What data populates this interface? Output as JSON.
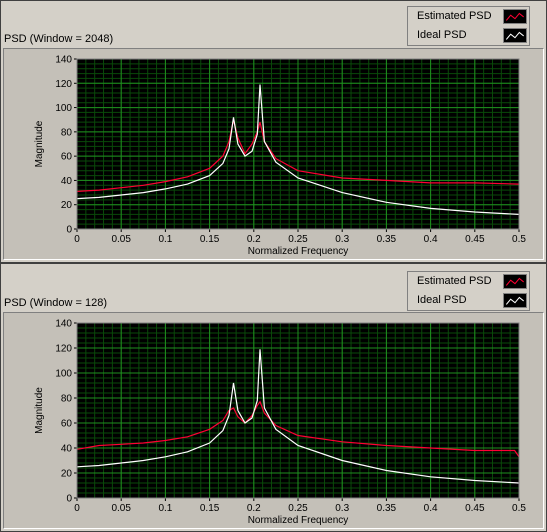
{
  "chart_data": [
    {
      "type": "line",
      "title": "PSD (Window = 2048)",
      "xlabel": "Normalized Frequency",
      "ylabel": "Magnitude",
      "xlim": [
        0,
        0.5
      ],
      "ylim": [
        0,
        140
      ],
      "x_ticks": [
        "0",
        "0.05",
        "0.1",
        "0.15",
        "0.2",
        "0.25",
        "0.3",
        "0.35",
        "0.4",
        "0.45",
        "0.5"
      ],
      "y_ticks": [
        "0",
        "20",
        "40",
        "60",
        "80",
        "100",
        "120",
        "140"
      ],
      "grid": true,
      "legend_position": "top-right",
      "series": [
        {
          "name": "Estimated PSD",
          "color": "#ff0033",
          "x": [
            0,
            0.025,
            0.05,
            0.075,
            0.1,
            0.125,
            0.15,
            0.165,
            0.172,
            0.177,
            0.182,
            0.19,
            0.198,
            0.204,
            0.207,
            0.212,
            0.225,
            0.25,
            0.3,
            0.35,
            0.4,
            0.45,
            0.5
          ],
          "y": [
            31,
            32,
            34,
            36,
            39,
            43,
            50,
            60,
            72,
            90,
            75,
            62,
            70,
            80,
            88,
            72,
            58,
            48,
            42,
            40,
            38,
            38,
            37
          ]
        },
        {
          "name": "Ideal PSD",
          "color": "#ffffff",
          "x": [
            0,
            0.025,
            0.05,
            0.075,
            0.1,
            0.125,
            0.15,
            0.165,
            0.172,
            0.177,
            0.182,
            0.19,
            0.198,
            0.204,
            0.207,
            0.212,
            0.225,
            0.25,
            0.3,
            0.35,
            0.4,
            0.45,
            0.5
          ],
          "y": [
            25,
            26,
            28,
            30,
            33,
            37,
            44,
            54,
            66,
            92,
            70,
            60,
            64,
            78,
            119,
            72,
            55,
            42,
            30,
            22,
            17,
            14,
            12
          ]
        }
      ]
    },
    {
      "type": "line",
      "title": "PSD (Window = 128)",
      "xlabel": "Normalized Frequency",
      "ylabel": "Magnitude",
      "xlim": [
        0,
        0.5
      ],
      "ylim": [
        0,
        140
      ],
      "x_ticks": [
        "0",
        "0.05",
        "0.1",
        "0.15",
        "0.2",
        "0.25",
        "0.3",
        "0.35",
        "0.4",
        "0.45",
        "0.5"
      ],
      "y_ticks": [
        "0",
        "20",
        "40",
        "60",
        "80",
        "100",
        "120",
        "140"
      ],
      "grid": true,
      "legend_position": "top-right",
      "series": [
        {
          "name": "Estimated PSD",
          "color": "#ff0033",
          "x": [
            0,
            0.025,
            0.05,
            0.075,
            0.1,
            0.125,
            0.15,
            0.165,
            0.172,
            0.177,
            0.182,
            0.19,
            0.198,
            0.204,
            0.207,
            0.212,
            0.225,
            0.25,
            0.3,
            0.35,
            0.4,
            0.45,
            0.495,
            0.5
          ],
          "y": [
            39,
            42,
            43,
            44,
            46,
            49,
            55,
            62,
            70,
            72,
            65,
            60,
            66,
            74,
            77,
            68,
            58,
            50,
            45,
            42,
            40,
            38,
            38,
            33
          ]
        },
        {
          "name": "Ideal PSD",
          "color": "#ffffff",
          "x": [
            0,
            0.025,
            0.05,
            0.075,
            0.1,
            0.125,
            0.15,
            0.165,
            0.172,
            0.177,
            0.182,
            0.19,
            0.198,
            0.204,
            0.207,
            0.212,
            0.225,
            0.25,
            0.3,
            0.35,
            0.4,
            0.45,
            0.5
          ],
          "y": [
            25,
            26,
            28,
            30,
            33,
            37,
            44,
            54,
            66,
            92,
            70,
            60,
            64,
            78,
            119,
            72,
            55,
            42,
            30,
            22,
            17,
            14,
            12
          ]
        }
      ]
    }
  ]
}
